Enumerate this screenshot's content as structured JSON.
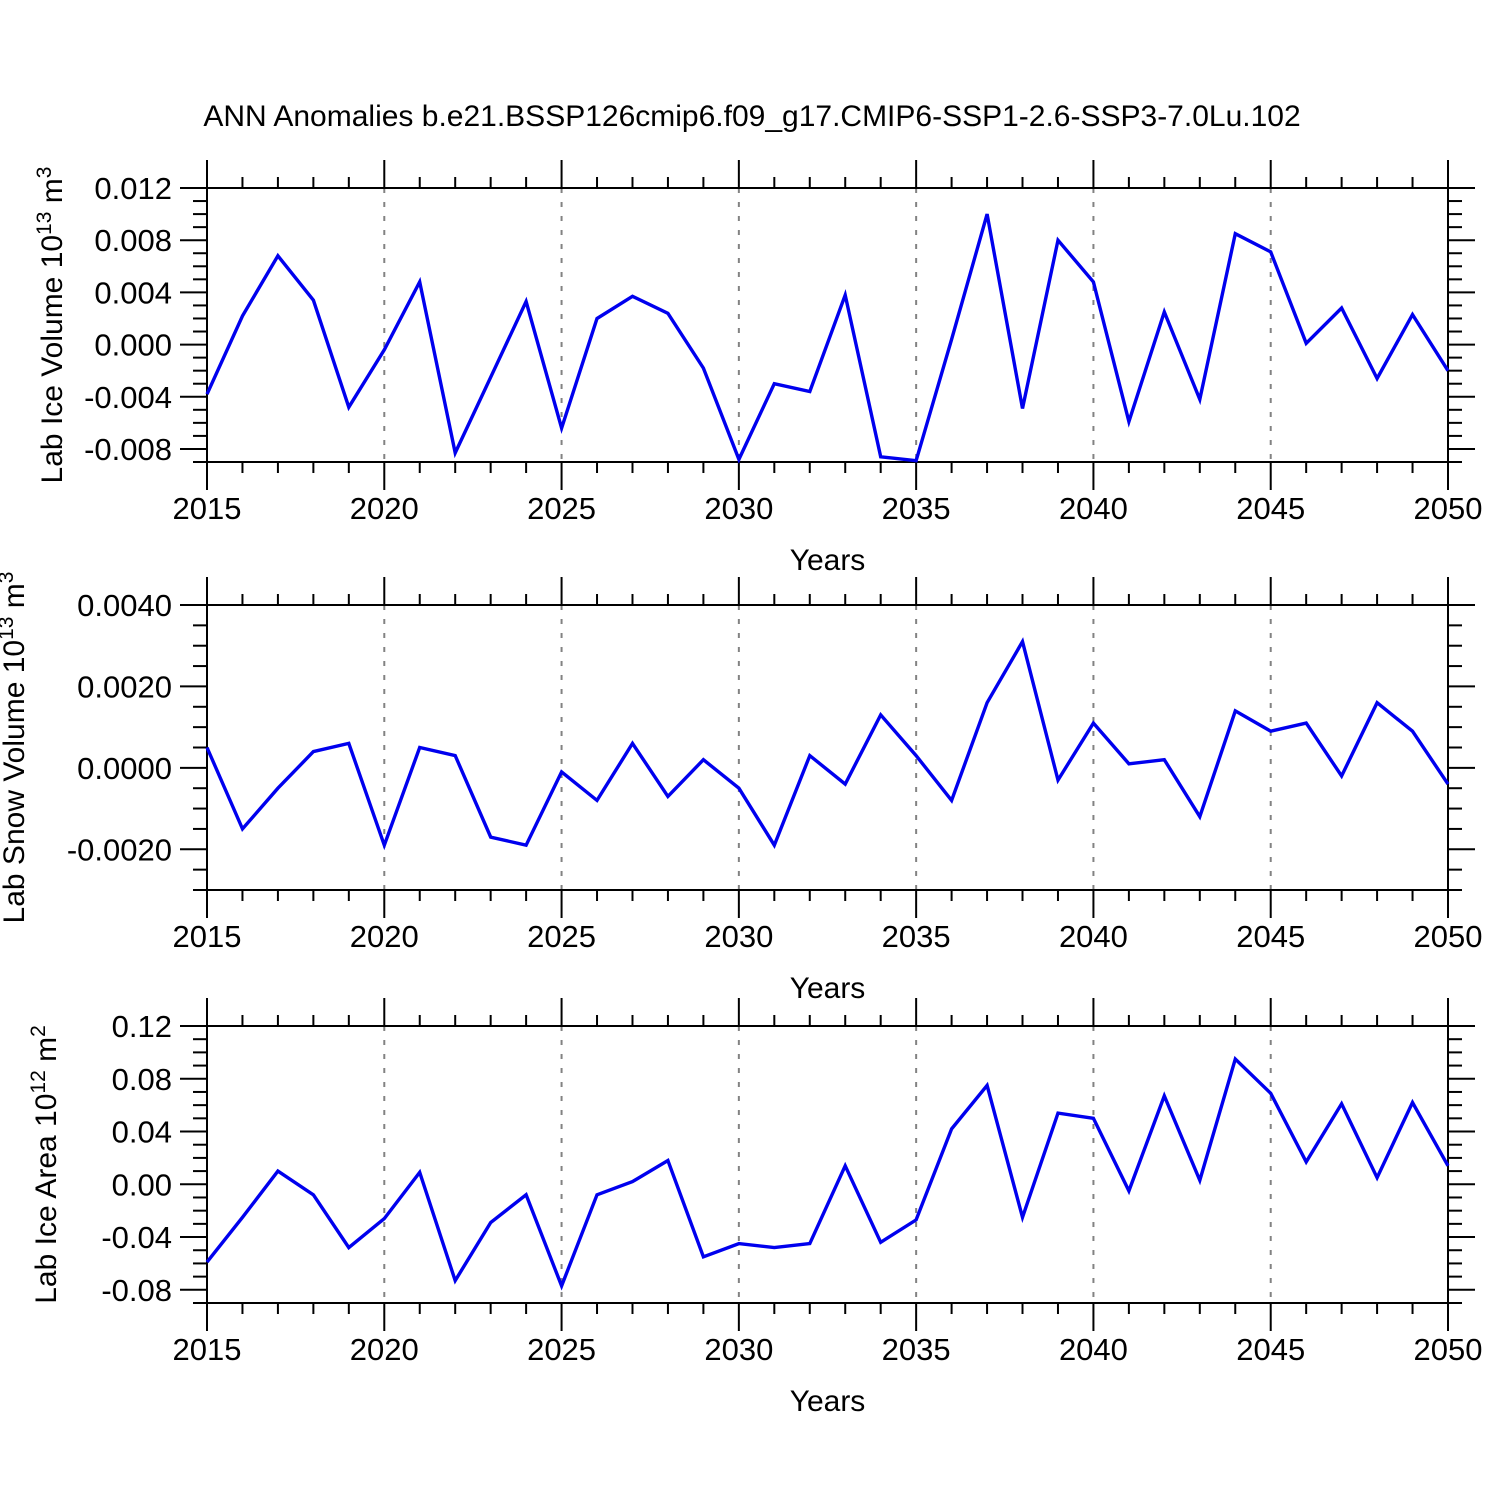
{
  "title": "ANN Anomalies b.e21.BSSP126cmip6.f09_g17.CMIP6-SSP1-2.6-SSP3-7.0Lu.102",
  "colors": {
    "line": "#0000EE",
    "grid": "#828282",
    "axis": "#000000"
  },
  "x_axis": {
    "label": "Years",
    "range": [
      2015,
      2050
    ],
    "ticks": [
      2015,
      2020,
      2025,
      2030,
      2035,
      2040,
      2045,
      2050
    ],
    "minor_step": 1,
    "grid_years": [
      2020,
      2025,
      2030,
      2035,
      2040,
      2045
    ]
  },
  "chart_data": [
    {
      "type": "line",
      "name": "lab-ice-volume",
      "ylabel": "Lab Ice Volume 10^13 m^3",
      "ylabel_parts": [
        {
          "text": "Lab Ice Volume 10",
          "sup": false
        },
        {
          "text": "13",
          "sup": true
        },
        {
          "text": " m",
          "sup": false
        },
        {
          "text": "3",
          "sup": true
        }
      ],
      "ylim": [
        -0.009,
        0.012
      ],
      "ytick_step": 0.004,
      "yminor_step": 0.001,
      "yticks": [
        0.012,
        0.008,
        0.004,
        0.0,
        -0.004,
        -0.008
      ],
      "ytick_labels": [
        "0.012",
        "0.008",
        "0.004",
        "0.000",
        "-0.004",
        "-0.008"
      ],
      "x": [
        2015,
        2016,
        2017,
        2018,
        2019,
        2020,
        2021,
        2022,
        2023,
        2024,
        2025,
        2026,
        2027,
        2028,
        2029,
        2030,
        2031,
        2032,
        2033,
        2034,
        2035,
        2036,
        2037,
        2038,
        2039,
        2040,
        2041,
        2042,
        2043,
        2044,
        2045,
        2046,
        2047,
        2048,
        2049,
        2050
      ],
      "values": [
        -0.0038,
        0.0022,
        0.0068,
        0.0034,
        -0.0048,
        -0.0004,
        0.0048,
        -0.0083,
        -0.0025,
        0.0033,
        -0.0064,
        0.002,
        0.0037,
        0.0024,
        -0.0018,
        -0.0088,
        -0.003,
        -0.0036,
        0.0038,
        -0.0086,
        -0.0089,
        0.0004,
        0.01,
        -0.0049,
        0.008,
        0.0048,
        -0.0059,
        0.0025,
        -0.0042,
        0.0085,
        0.0071,
        0.0001,
        0.0028,
        -0.0026,
        0.0023,
        -0.002
      ]
    },
    {
      "type": "line",
      "name": "lab-snow-volume",
      "ylabel": "Lab Snow Volume 10^13 m^3",
      "ylabel_parts": [
        {
          "text": "Lab Snow Volume 10",
          "sup": false
        },
        {
          "text": "13",
          "sup": true
        },
        {
          "text": " m",
          "sup": false
        },
        {
          "text": "3",
          "sup": true
        }
      ],
      "ylim": [
        -0.003,
        0.004
      ],
      "ytick_step": 0.002,
      "yminor_step": 0.0005,
      "yticks": [
        0.004,
        0.002,
        0.0,
        -0.002
      ],
      "ytick_labels": [
        "0.0040",
        "0.0020",
        "0.0000",
        "-0.0020"
      ],
      "x": [
        2015,
        2016,
        2017,
        2018,
        2019,
        2020,
        2021,
        2022,
        2023,
        2024,
        2025,
        2026,
        2027,
        2028,
        2029,
        2030,
        2031,
        2032,
        2033,
        2034,
        2035,
        2036,
        2037,
        2038,
        2039,
        2040,
        2041,
        2042,
        2043,
        2044,
        2045,
        2046,
        2047,
        2048,
        2049,
        2050
      ],
      "values": [
        0.0005,
        -0.0015,
        -0.0005,
        0.0004,
        0.0006,
        -0.0019,
        0.0005,
        0.0003,
        -0.0017,
        -0.0019,
        -0.0001,
        -0.0008,
        0.0006,
        -0.0007,
        0.0002,
        -0.0005,
        -0.0019,
        0.0003,
        -0.0004,
        0.0013,
        0.0003,
        -0.0008,
        0.0016,
        0.0031,
        -0.0003,
        0.0011,
        0.0001,
        0.0002,
        -0.0012,
        0.0014,
        0.0009,
        0.0011,
        -0.0002,
        0.0016,
        0.0009,
        -0.0004
      ]
    },
    {
      "type": "line",
      "name": "lab-ice-area",
      "ylabel": "Lab Ice Area 10^12 m^2",
      "ylabel_parts": [
        {
          "text": "Lab Ice Area 10",
          "sup": false
        },
        {
          "text": "12",
          "sup": true
        },
        {
          "text": " m",
          "sup": false
        },
        {
          "text": "2",
          "sup": true
        }
      ],
      "ylim": [
        -0.09,
        0.12
      ],
      "ytick_step": 0.04,
      "yminor_step": 0.01,
      "yticks": [
        0.12,
        0.08,
        0.04,
        0.0,
        -0.04,
        -0.08
      ],
      "ytick_labels": [
        "0.12",
        "0.08",
        "0.04",
        "0.00",
        "-0.04",
        "-0.08"
      ],
      "x": [
        2015,
        2016,
        2017,
        2018,
        2019,
        2020,
        2021,
        2022,
        2023,
        2024,
        2025,
        2026,
        2027,
        2028,
        2029,
        2030,
        2031,
        2032,
        2033,
        2034,
        2035,
        2036,
        2037,
        2038,
        2039,
        2040,
        2041,
        2042,
        2043,
        2044,
        2045,
        2046,
        2047,
        2048,
        2049,
        2050
      ],
      "values": [
        -0.059,
        -0.025,
        0.01,
        -0.008,
        -0.048,
        -0.026,
        0.009,
        -0.073,
        -0.029,
        -0.008,
        -0.077,
        -0.008,
        0.002,
        0.018,
        -0.055,
        -0.045,
        -0.048,
        -0.045,
        0.014,
        -0.044,
        -0.027,
        0.042,
        0.075,
        -0.025,
        0.054,
        0.05,
        -0.005,
        0.067,
        0.003,
        0.095,
        0.069,
        0.017,
        0.061,
        0.005,
        0.062,
        0.014
      ]
    }
  ]
}
